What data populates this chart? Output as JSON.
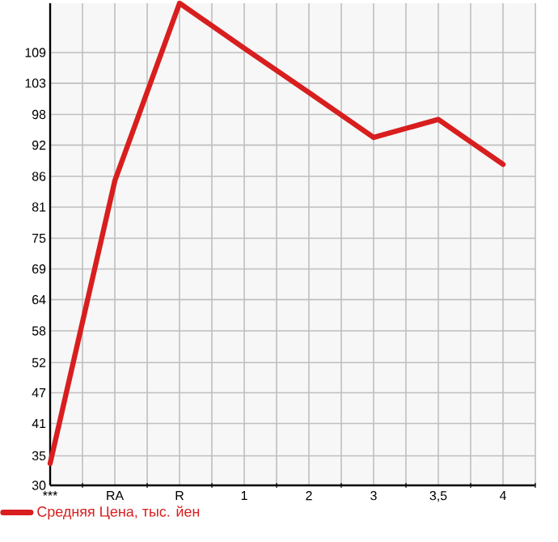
{
  "chart_data": {
    "type": "line",
    "categories": [
      "***",
      "RA",
      "R",
      "1",
      "2",
      "3",
      "3,5",
      "4"
    ],
    "series": [
      {
        "name": "Средняя Цена, тыс. йен",
        "color": "#d81e1e",
        "values": [
          34,
          85.6,
          118,
          109.8,
          101.7,
          93.5,
          96.8,
          88.6
        ]
      }
    ],
    "ylim": [
      30,
      118
    ],
    "yticks": [
      {
        "value": 30,
        "label": "30"
      },
      {
        "value": 35.4,
        "label": "35"
      },
      {
        "value": 41.3,
        "label": "41"
      },
      {
        "value": 46.9,
        "label": "47"
      },
      {
        "value": 52.4,
        "label": "52"
      },
      {
        "value": 58.2,
        "label": "58"
      },
      {
        "value": 63.9,
        "label": "64"
      },
      {
        "value": 69.5,
        "label": "69"
      },
      {
        "value": 75.1,
        "label": "75"
      },
      {
        "value": 80.8,
        "label": "81"
      },
      {
        "value": 86.4,
        "label": "86"
      },
      {
        "value": 92.1,
        "label": "92"
      },
      {
        "value": 97.7,
        "label": "98"
      },
      {
        "value": 103.4,
        "label": "103"
      },
      {
        "value": 109,
        "label": "109"
      }
    ],
    "grid": true,
    "legend": "bottom"
  }
}
